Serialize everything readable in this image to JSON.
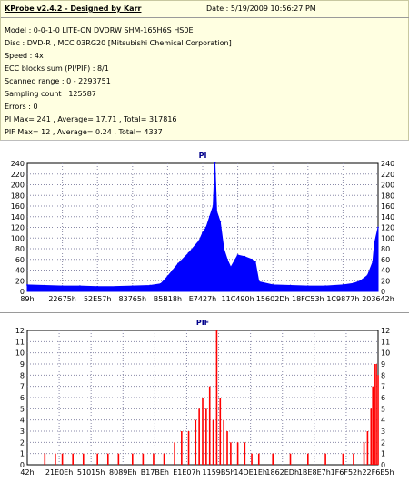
{
  "header": {
    "app_title": "KProbe v2.4.2 - Designed by Karr",
    "date": "Date : 5/19/2009 10:56:27 PM"
  },
  "info": {
    "model": "Model : 0-0-1-0 LITE-ON DVDRW SHM-165H6S HS0E",
    "disc": "Disc : DVD-R , MCC 03RG20  [Mitsubishi Chemical Corporation]",
    "speed": "Speed : 4x",
    "ecc": "ECC blocks sum (PI/PIF) : 8/1",
    "range": "Scanned range : 0 - 2293751",
    "sampling": "Sampling count : 125587",
    "errors": "Errors : 0",
    "pi_summary": "PI Max= 241 , Average= 17.71 , Total= 317816",
    "pif_summary": "PIF Max= 12 , Average= 0.24 , Total= 4337"
  },
  "chart_data": [
    {
      "type": "area",
      "title": "PI",
      "color": "#0000ff",
      "ylim": [
        0,
        240
      ],
      "y_ticks": [
        0,
        20,
        40,
        60,
        80,
        100,
        120,
        140,
        160,
        180,
        200,
        220,
        240
      ],
      "x_tick_labels": [
        "89h",
        "22675h",
        "52E57h",
        "83765h",
        "B5B18h",
        "E7427h",
        "11C490h",
        "15602Dh",
        "18FC53h",
        "1C9877h",
        "203642h"
      ],
      "grid": true,
      "x": [
        0,
        0.05,
        0.1,
        0.15,
        0.2,
        0.25,
        0.3,
        0.35,
        0.38,
        0.4,
        0.43,
        0.46,
        0.49,
        0.5,
        0.51,
        0.52,
        0.53,
        0.535,
        0.54,
        0.55,
        0.56,
        0.57,
        0.58,
        0.6,
        0.62,
        0.64,
        0.65,
        0.66,
        0.7,
        0.75,
        0.8,
        0.85,
        0.9,
        0.93,
        0.95,
        0.97,
        0.985,
        0.99,
        1.0
      ],
      "values": [
        12,
        11,
        10,
        10,
        9,
        9,
        10,
        11,
        14,
        28,
        52,
        72,
        95,
        110,
        120,
        140,
        160,
        241,
        150,
        130,
        80,
        60,
        45,
        68,
        65,
        60,
        55,
        18,
        12,
        11,
        10,
        10,
        12,
        15,
        20,
        30,
        55,
        90,
        120
      ]
    },
    {
      "type": "bar",
      "title": "PIF",
      "color": "#ff0000",
      "ylim": [
        0,
        12
      ],
      "y_ticks": [
        0,
        1,
        2,
        3,
        4,
        5,
        6,
        7,
        8,
        9,
        10,
        11,
        12
      ],
      "x_tick_labels": [
        "42h",
        "21E0Eh",
        "51015h",
        "8089Eh",
        "B17BEh",
        "E1E07h",
        "1159B5h",
        "14DE1Eh",
        "1862EDh",
        "1BE8E7h",
        "1F6F52h",
        "22F6E5h"
      ],
      "grid": true,
      "x": [
        0.05,
        0.08,
        0.1,
        0.13,
        0.16,
        0.2,
        0.23,
        0.26,
        0.3,
        0.33,
        0.36,
        0.39,
        0.42,
        0.44,
        0.46,
        0.48,
        0.49,
        0.5,
        0.51,
        0.52,
        0.53,
        0.54,
        0.55,
        0.56,
        0.57,
        0.58,
        0.6,
        0.62,
        0.64,
        0.66,
        0.7,
        0.75,
        0.8,
        0.85,
        0.9,
        0.93,
        0.96,
        0.97,
        0.98,
        0.985,
        0.99,
        0.995,
        1.0
      ],
      "values": [
        1,
        1,
        1,
        1,
        1,
        1,
        1,
        1,
        1,
        1,
        1,
        1,
        2,
        3,
        3,
        4,
        5,
        6,
        5,
        7,
        4,
        12,
        6,
        4,
        3,
        2,
        2,
        2,
        1,
        1,
        1,
        1,
        1,
        1,
        1,
        1,
        2,
        3,
        5,
        7,
        9,
        9,
        8
      ]
    }
  ]
}
